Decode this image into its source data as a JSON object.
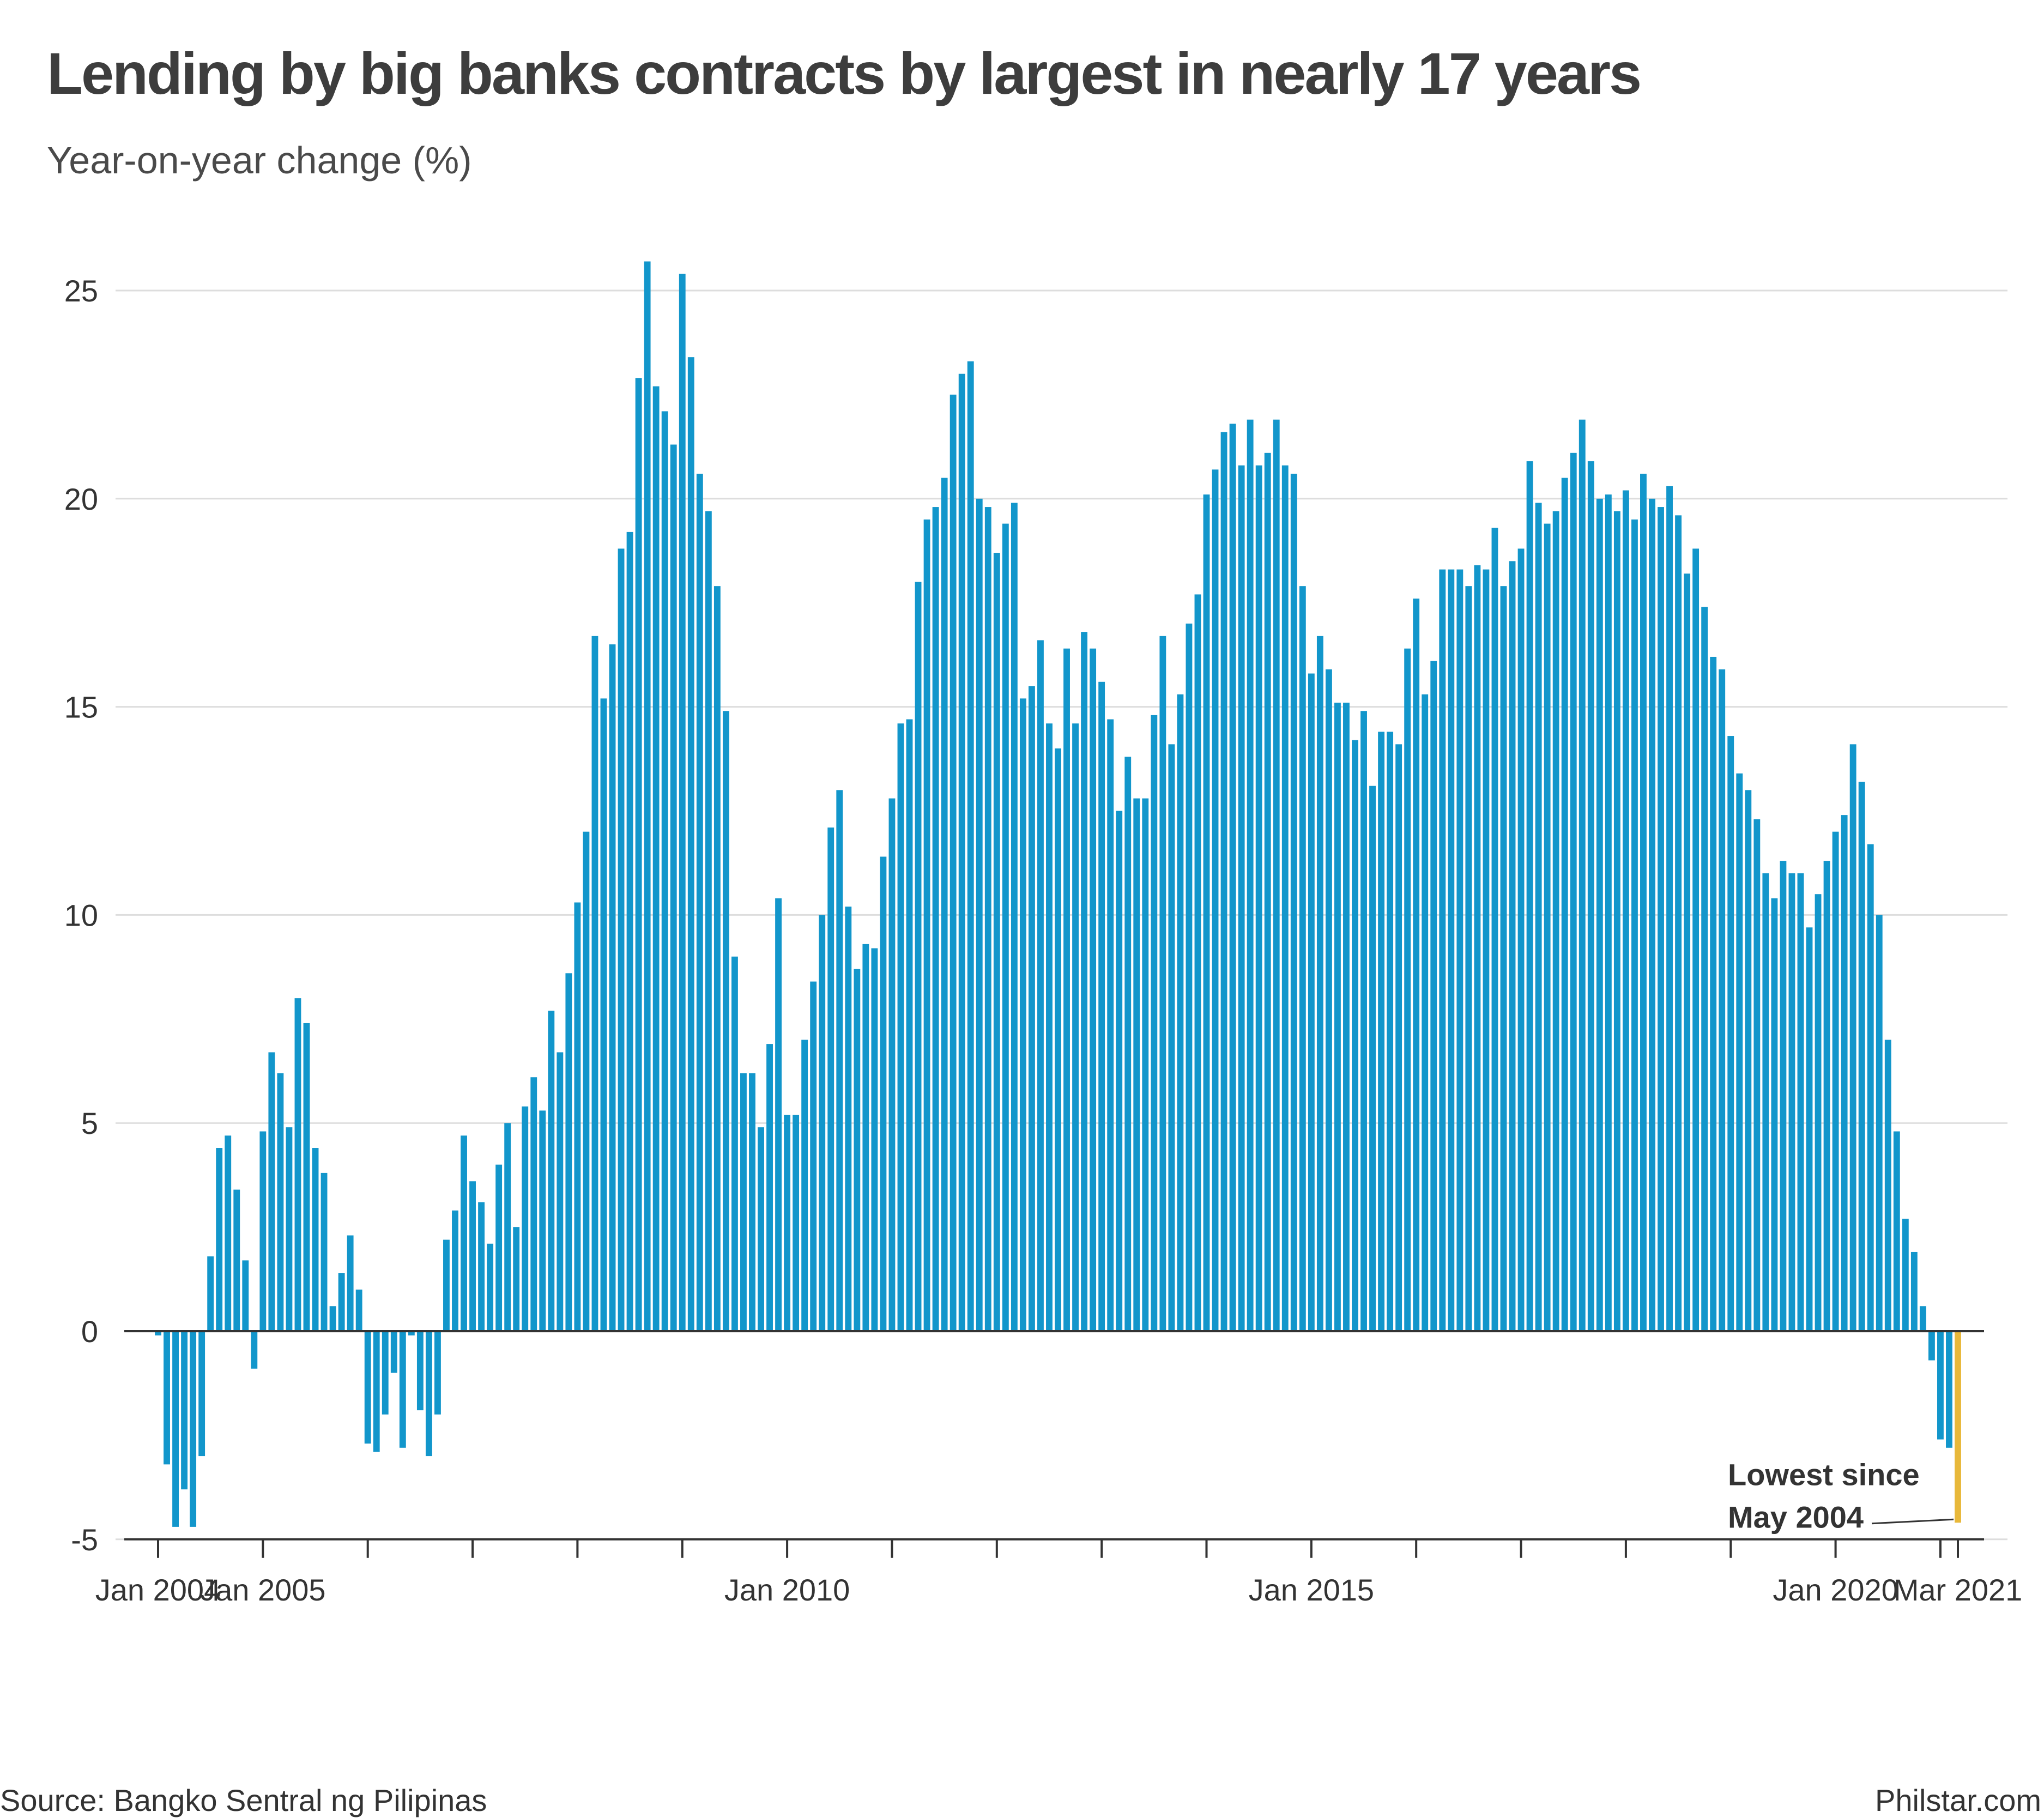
{
  "title": "Lending by big banks contracts by largest in nearly 17 years",
  "subtitle": "Year-on-year change (%)",
  "source": "Source: Bangko Sentral ng Pilipinas",
  "credit": "Philstar.com",
  "colors": {
    "bar": "#1296cb",
    "highlight": "#e8b83a",
    "grid": "#dddddd",
    "axis": "#333333",
    "text": "#333333"
  },
  "chart_data": {
    "type": "bar",
    "title": "Lending by big banks contracts by largest in nearly 17 years",
    "ylabel": "Year-on-year change (%)",
    "xlabel": "",
    "ylim": [
      -5,
      26.5
    ],
    "yticks": [
      -5,
      0,
      5,
      10,
      15,
      20,
      25
    ],
    "grid": true,
    "start": "2004-01",
    "end": "2021-03",
    "x_labels": [
      {
        "date": "2004-01",
        "label": "Jan 2004"
      },
      {
        "date": "2005-01",
        "label": "Jan 2005"
      },
      {
        "date": "2010-01",
        "label": "Jan 2010"
      },
      {
        "date": "2015-01",
        "label": "Jan 2015"
      },
      {
        "date": "2020-01",
        "label": "Jan 2020"
      },
      {
        "date": "2021-03",
        "label": "Mar 2021"
      }
    ],
    "highlight_date": "2021-03",
    "annotation": {
      "date": "2021-03",
      "value": -4.6,
      "lines": [
        "Lowest since",
        "May 2004"
      ]
    },
    "values": [
      -0.1,
      -3.2,
      -4.7,
      -3.8,
      -4.7,
      -3.0,
      1.8,
      4.4,
      4.7,
      3.4,
      1.7,
      -0.9,
      4.8,
      6.7,
      6.2,
      4.9,
      8.0,
      7.4,
      4.4,
      3.8,
      0.6,
      1.4,
      2.3,
      1.0,
      -2.7,
      -2.9,
      -2.0,
      -1.0,
      -2.8,
      -0.1,
      -1.9,
      -3.0,
      -2.0,
      2.2,
      2.9,
      4.7,
      3.6,
      3.1,
      2.1,
      4.0,
      5.0,
      2.5,
      5.4,
      6.1,
      5.3,
      7.7,
      6.7,
      8.6,
      10.3,
      12.0,
      16.7,
      15.2,
      16.5,
      18.8,
      19.2,
      22.9,
      25.7,
      22.7,
      22.1,
      21.3,
      25.4,
      23.4,
      20.6,
      19.7,
      17.9,
      14.9,
      9.0,
      6.2,
      6.2,
      4.9,
      6.9,
      10.4,
      5.2,
      5.2,
      7.0,
      8.4,
      10.0,
      12.1,
      13.0,
      10.2,
      8.7,
      9.3,
      9.2,
      11.4,
      12.8,
      14.6,
      14.7,
      18.0,
      19.5,
      19.8,
      20.5,
      22.5,
      23.0,
      23.3,
      20.0,
      19.8,
      18.7,
      19.4,
      19.9,
      15.2,
      15.5,
      16.6,
      14.6,
      14.0,
      16.4,
      14.6,
      16.8,
      16.4,
      15.6,
      14.7,
      12.5,
      13.8,
      12.8,
      12.8,
      14.8,
      16.7,
      14.1,
      15.3,
      17.0,
      17.7,
      20.1,
      20.7,
      21.6,
      21.8,
      20.8,
      21.9,
      20.8,
      21.1,
      21.9,
      20.8,
      20.6,
      17.9,
      15.8,
      16.7,
      15.9,
      15.1,
      15.1,
      14.2,
      14.9,
      13.1,
      14.4,
      14.4,
      14.1,
      16.4,
      17.6,
      15.3,
      16.1,
      18.3,
      18.3,
      18.3,
      17.9,
      18.4,
      18.3,
      19.3,
      17.9,
      18.5,
      18.8,
      20.9,
      19.9,
      19.4,
      19.7,
      20.5,
      21.1,
      21.9,
      20.9,
      20.0,
      20.1,
      19.7,
      20.2,
      19.5,
      20.6,
      20.0,
      19.8,
      20.3,
      19.6,
      18.2,
      18.8,
      17.4,
      16.2,
      15.9,
      14.3,
      13.4,
      13.0,
      12.3,
      11.0,
      10.4,
      11.3,
      11.0,
      11.0,
      9.7,
      10.5,
      11.3,
      12.0,
      12.4,
      14.1,
      13.2,
      11.7,
      10.0,
      7.0,
      4.8,
      2.7,
      1.9,
      0.6,
      -0.7,
      -2.6,
      -2.8,
      -4.6
    ]
  }
}
